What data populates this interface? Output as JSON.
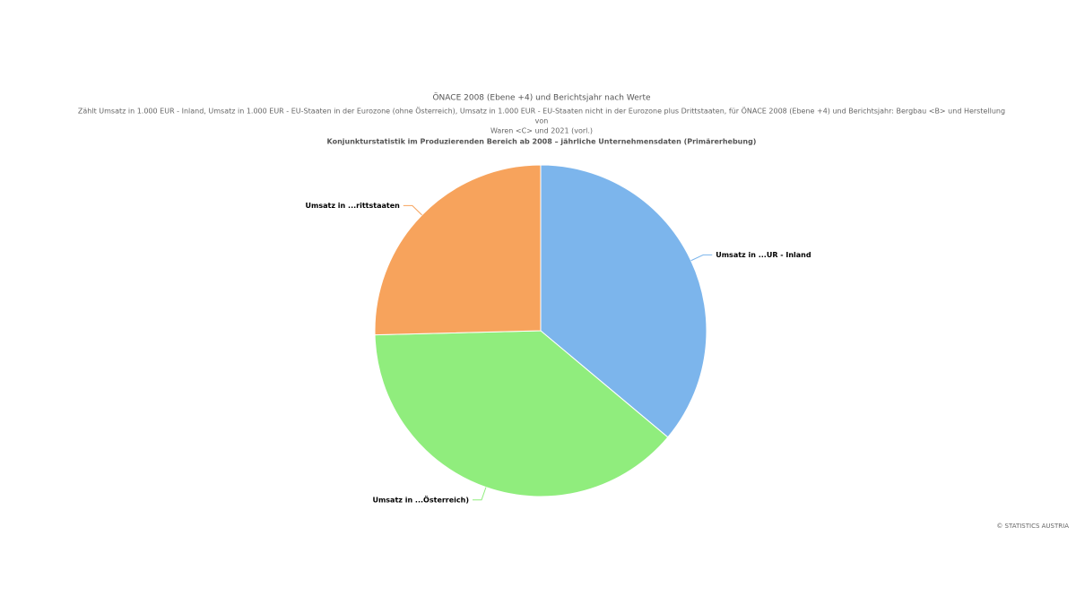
{
  "chart_data": {
    "type": "pie",
    "title": "ÖNACE 2008 (Ebene +4) und Berichtsjahr nach Werte",
    "subtitle": [
      "Zählt Umsatz in 1.000 EUR - Inland, Umsatz in 1.000 EUR - EU-Staaten in der Eurozone (ohne Österreich), Umsatz in 1.000 EUR - EU-Staaten nicht in der Eurozone plus Drittstaaten, für ÖNACE 2008 (Ebene +4) und Berichtsjahr: Bergbau <B> und Herstellung",
      "von",
      "Waren <C> und 2021 (vorl.)"
    ],
    "caption": "Konjunkturstatistik im Produzierenden Bereich ab 2008 – jährliche Unternehmensdaten (Primärerhebung)",
    "categories": [
      "Umsatz in ...UR - Inland",
      "Umsatz in ...Österreich)",
      "Umsatz in ...rittstaaten"
    ],
    "values": [
      36.1,
      38.5,
      25.4
    ],
    "colors": [
      "#7cb5ec",
      "#90ed7d",
      "#f7a35c"
    ],
    "credits": "© STATISTICS AUSTRIA"
  }
}
